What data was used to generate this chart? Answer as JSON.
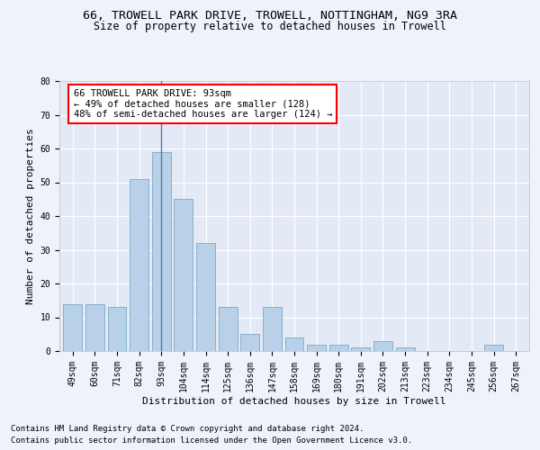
{
  "title1": "66, TROWELL PARK DRIVE, TROWELL, NOTTINGHAM, NG9 3RA",
  "title2": "Size of property relative to detached houses in Trowell",
  "xlabel": "Distribution of detached houses by size in Trowell",
  "ylabel": "Number of detached properties",
  "categories": [
    "49sqm",
    "60sqm",
    "71sqm",
    "82sqm",
    "93sqm",
    "104sqm",
    "114sqm",
    "125sqm",
    "136sqm",
    "147sqm",
    "158sqm",
    "169sqm",
    "180sqm",
    "191sqm",
    "202sqm",
    "213sqm",
    "223sqm",
    "234sqm",
    "245sqm",
    "256sqm",
    "267sqm"
  ],
  "values": [
    14,
    14,
    13,
    51,
    59,
    45,
    32,
    13,
    5,
    13,
    4,
    2,
    2,
    1,
    3,
    1,
    0,
    0,
    0,
    2,
    0
  ],
  "bar_color": "#b8d0e8",
  "bar_edge_color": "#7aaac8",
  "vline_index": 4,
  "ylim": [
    0,
    80
  ],
  "yticks": [
    0,
    10,
    20,
    30,
    40,
    50,
    60,
    70,
    80
  ],
  "annotation_line1": "66 TROWELL PARK DRIVE: 93sqm",
  "annotation_line2": "← 49% of detached houses are smaller (128)",
  "annotation_line3": "48% of semi-detached houses are larger (124) →",
  "footnote1": "Contains HM Land Registry data © Crown copyright and database right 2024.",
  "footnote2": "Contains public sector information licensed under the Open Government Licence v3.0.",
  "bg_color": "#eef2fa",
  "plot_bg_color": "#e4eaf5",
  "grid_color": "#ffffff",
  "title1_fontsize": 9.5,
  "title2_fontsize": 8.5,
  "annotation_fontsize": 7.5,
  "axis_label_fontsize": 8,
  "tick_fontsize": 7,
  "footnote_fontsize": 6.5,
  "ylabel_fontsize": 8
}
